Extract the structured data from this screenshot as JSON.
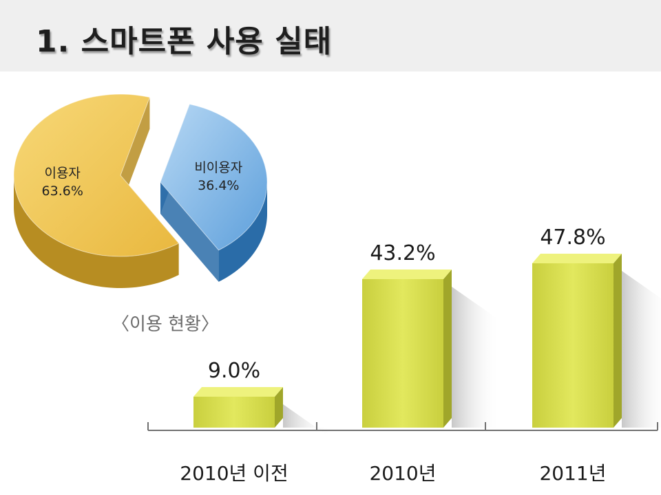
{
  "slide": {
    "title": "1. 스마트폰 사용 실태"
  },
  "colors": {
    "pie_user": "#f2c95a",
    "pie_user_side": "#b78d22",
    "pie_nonuser": "#7fb7e6",
    "pie_nonuser_side": "#2a6ca8",
    "bar_front": "#d8df52",
    "bar_top": "#eef27d",
    "bar_side": "#a0a62a",
    "axis": "#707070"
  },
  "chart_data": [
    {
      "type": "pie",
      "title": "",
      "caption": "〈이용 현황〉",
      "slices": [
        {
          "name": "이용자",
          "value": 63.6,
          "label": "63.6%"
        },
        {
          "name": "비이용자",
          "value": 36.4,
          "label": "36.4%"
        }
      ]
    },
    {
      "type": "bar",
      "title": "",
      "categories": [
        "2010년 이전",
        "2010년",
        "2011년"
      ],
      "values": [
        9.0,
        43.2,
        47.8
      ],
      "value_labels": [
        "9.0%",
        "43.2%",
        "47.8%"
      ],
      "ylim": [
        0,
        50
      ],
      "xlabel": "",
      "ylabel": "",
      "grid": false
    }
  ]
}
